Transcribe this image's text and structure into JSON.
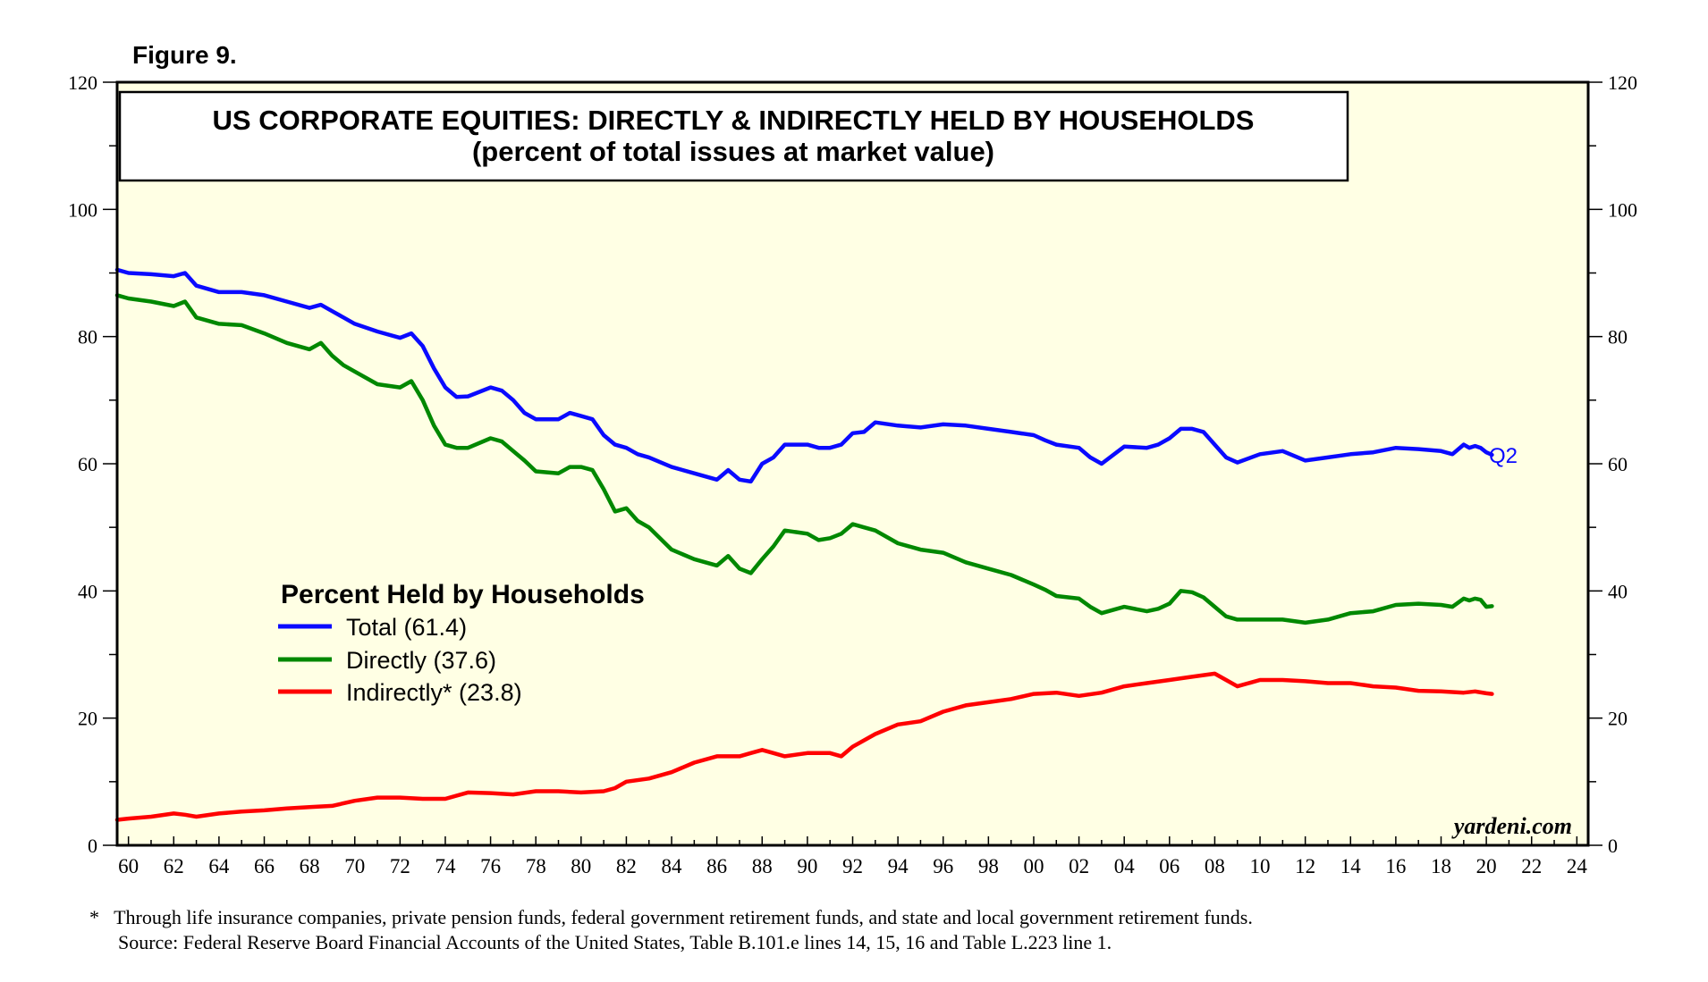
{
  "figure_label": "Figure 9.",
  "footnote": "*   Through life insurance companies, private pension funds, federal government retirement funds, and state and local government retirement funds.",
  "source": "Source: Federal Reserve Board Financial Accounts of the United States, Table B.101.e lines 14, 15, 16 and Table L.223 line 1.",
  "watermark": "yardeni.com",
  "colors": {
    "background": "#ffffe4",
    "total": "#0a0aff",
    "directly": "#008800",
    "indirectly": "#ff0000"
  },
  "chart_data": {
    "type": "line",
    "title": "US CORPORATE EQUITIES: DIRECTLY & INDIRECTLY HELD BY HOUSEHOLDS",
    "subtitle": "(percent of total issues at market value)",
    "legend_title": "Percent Held by Households",
    "legend_position": "middle-left",
    "end_label": "Q2",
    "xlim": [
      1959.5,
      2024.5
    ],
    "ylim": [
      0,
      120
    ],
    "y_ticks": [
      0,
      20,
      40,
      60,
      80,
      100,
      120
    ],
    "x_tick_labels": [
      "60",
      "62",
      "64",
      "66",
      "68",
      "70",
      "72",
      "74",
      "76",
      "78",
      "80",
      "82",
      "84",
      "86",
      "88",
      "90",
      "92",
      "94",
      "96",
      "98",
      "00",
      "02",
      "04",
      "06",
      "08",
      "10",
      "12",
      "14",
      "16",
      "18",
      "20",
      "22",
      "24"
    ],
    "x_tick_years": [
      1960,
      1962,
      1964,
      1966,
      1968,
      1970,
      1972,
      1974,
      1976,
      1978,
      1980,
      1982,
      1984,
      1986,
      1988,
      1990,
      1992,
      1994,
      1996,
      1998,
      2000,
      2002,
      2004,
      2006,
      2008,
      2010,
      2012,
      2014,
      2016,
      2018,
      2020,
      2022,
      2024
    ],
    "series": [
      {
        "name": "Total",
        "legend": "Total (61.4)",
        "color_key": "total",
        "x": [
          1959.5,
          1960,
          1961,
          1962,
          1962.5,
          1963,
          1964,
          1965,
          1966,
          1967,
          1968,
          1968.5,
          1969,
          1969.5,
          1970,
          1971,
          1972,
          1972.5,
          1973,
          1973.5,
          1974,
          1974.5,
          1975,
          1976,
          1976.5,
          1977,
          1977.5,
          1978,
          1979,
          1979.5,
          1980,
          1980.5,
          1981,
          1981.5,
          1982,
          1982.5,
          1983,
          1984,
          1985,
          1986,
          1986.5,
          1987,
          1987.5,
          1988,
          1988.5,
          1989,
          1990,
          1990.5,
          1991,
          1991.5,
          1992,
          1992.5,
          1993,
          1994,
          1995,
          1996,
          1997,
          1998,
          1999,
          2000,
          2000.5,
          2001,
          2002,
          2002.5,
          2003,
          2004,
          2005,
          2005.5,
          2006,
          2006.5,
          2007,
          2007.5,
          2008,
          2008.5,
          2009,
          2010,
          2011,
          2012,
          2013,
          2014,
          2015,
          2016,
          2017,
          2018,
          2018.5,
          2019,
          2019.25,
          2019.5,
          2019.75,
          2020,
          2020.25
        ],
        "values": [
          90.5,
          90,
          89.8,
          89.5,
          90,
          88,
          87,
          87,
          86.5,
          85.5,
          84.5,
          85,
          84,
          83,
          82,
          80.8,
          79.8,
          80.5,
          78.5,
          75,
          72,
          70.5,
          70.6,
          72,
          71.5,
          70,
          68,
          67,
          67,
          68,
          67.5,
          67,
          64.5,
          63,
          62.5,
          61.5,
          61,
          59.5,
          58.5,
          57.5,
          59,
          57.5,
          57.2,
          60,
          61,
          63,
          63,
          62.5,
          62.5,
          63,
          64.8,
          65,
          66.5,
          66,
          65.7,
          66.2,
          66,
          65.5,
          65,
          64.5,
          63.7,
          63,
          62.5,
          61,
          60,
          62.7,
          62.5,
          63,
          64,
          65.5,
          65.5,
          65,
          63,
          61,
          60.2,
          61.5,
          62,
          60.5,
          61,
          61.5,
          61.8,
          62.5,
          62.3,
          62,
          61.5,
          63,
          62.5,
          62.8,
          62.5,
          61.8,
          61.4
        ]
      },
      {
        "name": "Directly",
        "legend": "Directly (37.6)",
        "color_key": "directly",
        "x": [
          1959.5,
          1960,
          1961,
          1962,
          1962.5,
          1963,
          1964,
          1965,
          1966,
          1967,
          1968,
          1968.5,
          1969,
          1969.5,
          1970,
          1971,
          1972,
          1972.5,
          1973,
          1973.5,
          1974,
          1974.5,
          1975,
          1976,
          1976.5,
          1977,
          1977.5,
          1978,
          1979,
          1979.5,
          1980,
          1980.5,
          1981,
          1981.5,
          1982,
          1982.5,
          1983,
          1984,
          1985,
          1986,
          1986.5,
          1987,
          1987.5,
          1988,
          1988.5,
          1989,
          1990,
          1990.5,
          1991,
          1991.5,
          1992,
          1992.5,
          1993,
          1994,
          1995,
          1996,
          1997,
          1998,
          1999,
          2000,
          2000.5,
          2001,
          2002,
          2002.5,
          2003,
          2004,
          2005,
          2005.5,
          2006,
          2006.5,
          2007,
          2007.5,
          2008,
          2008.5,
          2009,
          2010,
          2011,
          2012,
          2013,
          2014,
          2015,
          2016,
          2017,
          2018,
          2018.5,
          2019,
          2019.25,
          2019.5,
          2019.75,
          2020,
          2020.25
        ],
        "values": [
          86.5,
          86,
          85.5,
          84.8,
          85.5,
          83,
          82,
          81.8,
          80.5,
          79,
          78,
          79,
          77,
          75.5,
          74.5,
          72.5,
          72,
          73,
          70,
          66,
          63,
          62.5,
          62.5,
          64,
          63.5,
          62,
          60.5,
          58.8,
          58.5,
          59.5,
          59.5,
          59,
          56,
          52.5,
          53,
          51,
          50,
          46.5,
          45,
          44,
          45.5,
          43.5,
          42.8,
          45,
          47,
          49.5,
          49,
          48,
          48.3,
          49,
          50.5,
          50,
          49.5,
          47.5,
          46.5,
          46,
          44.5,
          43.5,
          42.5,
          41,
          40.2,
          39.2,
          38.8,
          37.5,
          36.5,
          37.5,
          36.8,
          37.2,
          38,
          40,
          39.8,
          39,
          37.5,
          36,
          35.5,
          35.5,
          35.5,
          35,
          35.5,
          36.5,
          36.8,
          37.8,
          38,
          37.8,
          37.5,
          38.8,
          38.5,
          38.8,
          38.6,
          37.5,
          37.6
        ]
      },
      {
        "name": "Indirectly",
        "legend": "Indirectly* (23.8)",
        "color_key": "indirectly",
        "x": [
          1959.5,
          1960,
          1961,
          1962,
          1962.5,
          1963,
          1964,
          1965,
          1966,
          1967,
          1968,
          1969,
          1970,
          1971,
          1972,
          1973,
          1974,
          1975,
          1976,
          1977,
          1978,
          1979,
          1980,
          1981,
          1981.5,
          1982,
          1983,
          1984,
          1985,
          1986,
          1987,
          1987.5,
          1988,
          1988.5,
          1989,
          1990,
          1991,
          1991.5,
          1992,
          1993,
          1994,
          1995,
          1996,
          1997,
          1998,
          1999,
          2000,
          2001,
          2002,
          2003,
          2004,
          2005,
          2006,
          2007,
          2008,
          2008.5,
          2009,
          2010,
          2011,
          2012,
          2013,
          2014,
          2015,
          2016,
          2017,
          2018,
          2019,
          2019.5,
          2020,
          2020.25
        ],
        "values": [
          4,
          4.2,
          4.5,
          5,
          4.8,
          4.5,
          5,
          5.3,
          5.5,
          5.8,
          6,
          6.2,
          7,
          7.5,
          7.5,
          7.3,
          7.3,
          8.3,
          8.2,
          8,
          8.5,
          8.5,
          8.3,
          8.5,
          9,
          10,
          10.5,
          11.5,
          13,
          14,
          14,
          14.5,
          15,
          14.5,
          14,
          14.5,
          14.5,
          14,
          15.5,
          17.5,
          19,
          19.5,
          21,
          22,
          22.5,
          23,
          23.8,
          24,
          23.5,
          24,
          25,
          25.5,
          26,
          26.5,
          27,
          26,
          25,
          26,
          26,
          25.8,
          25.5,
          25.5,
          25,
          24.8,
          24.3,
          24.2,
          24,
          24.2,
          23.9,
          23.8
        ]
      }
    ]
  }
}
